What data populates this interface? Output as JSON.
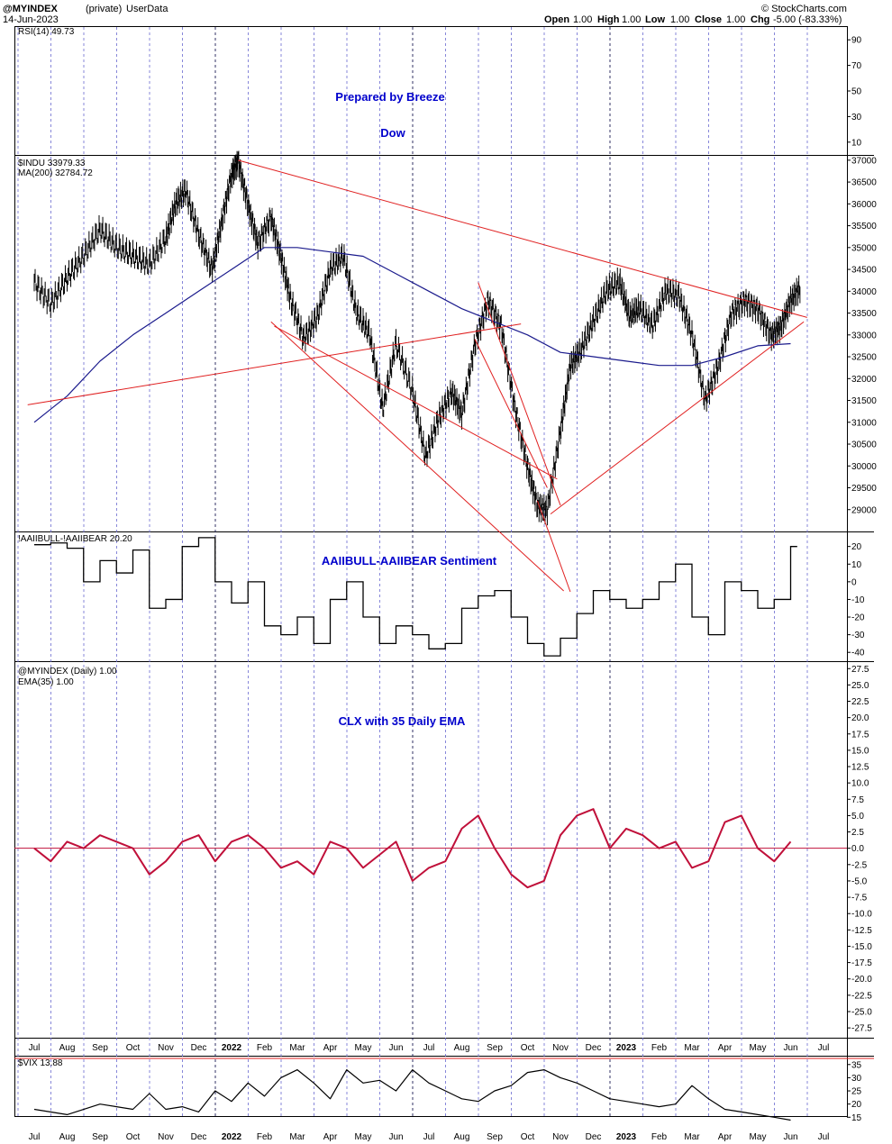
{
  "header": {
    "symbol": "@MYINDEX",
    "qualifier": "(private)",
    "source": "UserData",
    "date": "14-Jun-2023",
    "open_label": "Open",
    "open": "1.00",
    "high_label": "High",
    "high": "1.00",
    "low_label": "Low",
    "low": "1.00",
    "close_label": "Close",
    "close": "1.00",
    "chg_label": "Chg",
    "chg": "-5.00 (-83.33%)",
    "credit": "© StockCharts.com"
  },
  "colors": {
    "red": "#e02020",
    "navy": "#1a1a8c",
    "crimson": "#c0103a",
    "title_blue": "#0000cc"
  },
  "months": [
    "Jul",
    "Aug",
    "Sep",
    "Oct",
    "Nov",
    "Dec",
    "2022",
    "Feb",
    "Mar",
    "Apr",
    "May",
    "Jun",
    "Jul",
    "Aug",
    "Sep",
    "Oct",
    "Nov",
    "Dec",
    "2023",
    "Feb",
    "Mar",
    "Apr",
    "May",
    "Jun",
    "Jul"
  ],
  "chart_data": [
    {
      "type": "line",
      "panel": "rsi",
      "legend": "RSI(14) 49.73",
      "annotations": [
        "Prepared by Breeze",
        "Dow"
      ],
      "y_ticks": [
        90,
        70,
        50,
        30,
        10
      ],
      "ylim": [
        0,
        100
      ],
      "series": []
    },
    {
      "type": "line",
      "panel": "price",
      "legend": [
        "$INDU 33979.33",
        "MA(200) 32784.72"
      ],
      "y_ticks": [
        37000,
        36500,
        36000,
        35500,
        35000,
        34500,
        34000,
        33500,
        33000,
        32500,
        32000,
        31500,
        31000,
        30500,
        30000,
        29500,
        29000
      ],
      "ylim": [
        28500,
        37100
      ],
      "series": [
        {
          "name": "$INDU",
          "points": [
            [
              0,
              34200
            ],
            [
              0.5,
              33700
            ],
            [
              1,
              34300
            ],
            [
              1.5,
              34800
            ],
            [
              2,
              35400
            ],
            [
              2.5,
              35000
            ],
            [
              3,
              34800
            ],
            [
              3.5,
              34600
            ],
            [
              4,
              35200
            ],
            [
              4.3,
              36000
            ],
            [
              4.6,
              36300
            ],
            [
              5,
              35300
            ],
            [
              5.4,
              34500
            ],
            [
              5.7,
              35600
            ],
            [
              6,
              36700
            ],
            [
              6.2,
              37000
            ],
            [
              6.5,
              36000
            ],
            [
              6.8,
              35100
            ],
            [
              7.2,
              35700
            ],
            [
              7.5,
              34800
            ],
            [
              7.8,
              33800
            ],
            [
              8.2,
              32900
            ],
            [
              8.6,
              33400
            ],
            [
              9,
              34500
            ],
            [
              9.4,
              34800
            ],
            [
              9.8,
              33500
            ],
            [
              10.2,
              33000
            ],
            [
              10.6,
              31300
            ],
            [
              11,
              32800
            ],
            [
              11.5,
              31700
            ],
            [
              11.9,
              30200
            ],
            [
              12.3,
              31100
            ],
            [
              12.7,
              31700
            ],
            [
              13,
              31200
            ],
            [
              13.4,
              32800
            ],
            [
              13.8,
              33800
            ],
            [
              14.2,
              33200
            ],
            [
              14.6,
              31400
            ],
            [
              15,
              30000
            ],
            [
              15.3,
              29100
            ],
            [
              15.6,
              29000
            ],
            [
              16,
              30800
            ],
            [
              16.3,
              32300
            ],
            [
              16.6,
              32600
            ],
            [
              17,
              33300
            ],
            [
              17.4,
              34000
            ],
            [
              17.8,
              34200
            ],
            [
              18.1,
              33400
            ],
            [
              18.4,
              33600
            ],
            [
              18.8,
              33200
            ],
            [
              19.2,
              34000
            ],
            [
              19.6,
              33900
            ],
            [
              20,
              33000
            ],
            [
              20.4,
              31500
            ],
            [
              20.8,
              32300
            ],
            [
              21.2,
              33500
            ],
            [
              21.6,
              33800
            ],
            [
              22,
              33600
            ],
            [
              22.4,
              33000
            ],
            [
              22.7,
              33200
            ],
            [
              23,
              33800
            ],
            [
              23.3,
              34100
            ]
          ]
        },
        {
          "name": "MA(200)",
          "points": [
            [
              0,
              31000
            ],
            [
              1,
              31600
            ],
            [
              2,
              32400
            ],
            [
              3,
              33000
            ],
            [
              4,
              33500
            ],
            [
              5,
              34000
            ],
            [
              6,
              34500
            ],
            [
              7,
              35000
            ],
            [
              8,
              35000
            ],
            [
              9,
              34900
            ],
            [
              10,
              34800
            ],
            [
              11,
              34400
            ],
            [
              12,
              34000
            ],
            [
              13,
              33600
            ],
            [
              14,
              33300
            ],
            [
              15,
              33000
            ],
            [
              16,
              32600
            ],
            [
              17,
              32500
            ],
            [
              18,
              32400
            ],
            [
              19,
              32300
            ],
            [
              20,
              32300
            ],
            [
              21,
              32500
            ],
            [
              22,
              32750
            ],
            [
              23,
              32800
            ]
          ]
        }
      ]
    },
    {
      "type": "line",
      "panel": "sentiment",
      "legend": "!AAIIBULL-!AAIIBEAR 20.20",
      "title": "AAIIBULL-AAIIBEAR Sentiment",
      "y_ticks": [
        20,
        10,
        0,
        -10,
        -20,
        -30,
        -40
      ],
      "ylim": [
        -45,
        28
      ],
      "series": [
        {
          "name": "!AAIIBULL-!AAIIBEAR",
          "points": [
            [
              0,
              21
            ],
            [
              0.5,
              22
            ],
            [
              1,
              19
            ],
            [
              1.5,
              0
            ],
            [
              2,
              12
            ],
            [
              2.5,
              5
            ],
            [
              3,
              18
            ],
            [
              3.5,
              -15
            ],
            [
              4,
              -10
            ],
            [
              4.5,
              20
            ],
            [
              5,
              25
            ],
            [
              5.5,
              0
            ],
            [
              6,
              -12
            ],
            [
              6.5,
              0
            ],
            [
              7,
              -25
            ],
            [
              7.5,
              -30
            ],
            [
              8,
              -20
            ],
            [
              8.5,
              -35
            ],
            [
              9,
              -10
            ],
            [
              9.5,
              0
            ],
            [
              10,
              -20
            ],
            [
              10.5,
              -35
            ],
            [
              11,
              -25
            ],
            [
              11.5,
              -30
            ],
            [
              12,
              -38
            ],
            [
              12.5,
              -35
            ],
            [
              13,
              -15
            ],
            [
              13.5,
              -8
            ],
            [
              14,
              -5
            ],
            [
              14.5,
              -20
            ],
            [
              15,
              -35
            ],
            [
              15.5,
              -42
            ],
            [
              16,
              -32
            ],
            [
              16.5,
              -18
            ],
            [
              17,
              -5
            ],
            [
              17.5,
              -10
            ],
            [
              18,
              -15
            ],
            [
              18.5,
              -10
            ],
            [
              19,
              0
            ],
            [
              19.5,
              10
            ],
            [
              20,
              -20
            ],
            [
              20.5,
              -30
            ],
            [
              21,
              0
            ],
            [
              21.5,
              -5
            ],
            [
              22,
              -15
            ],
            [
              22.5,
              -10
            ],
            [
              23,
              20
            ],
            [
              23.2,
              20
            ]
          ]
        }
      ]
    },
    {
      "type": "line",
      "panel": "clx",
      "legend": [
        "@MYINDEX (Daily) 1.00",
        "EMA(35) 1.00"
      ],
      "title": "CLX with 35 Daily EMA",
      "y_ticks": [
        27.5,
        25,
        22.5,
        20,
        17.5,
        15,
        12.5,
        10,
        7.5,
        5,
        2.5,
        0,
        -2.5,
        -5,
        -7.5,
        -10,
        -12.5,
        -15,
        -17.5,
        -20,
        -22.5,
        -25,
        -27.5
      ],
      "ylim": [
        -29,
        28.5
      ],
      "series": [
        {
          "name": "EMA(35)",
          "points": [
            [
              0,
              0
            ],
            [
              0.5,
              -2
            ],
            [
              1,
              1
            ],
            [
              1.5,
              0
            ],
            [
              2,
              2
            ],
            [
              2.5,
              1
            ],
            [
              3,
              0
            ],
            [
              3.5,
              -4
            ],
            [
              4,
              -2
            ],
            [
              4.5,
              1
            ],
            [
              5,
              2
            ],
            [
              5.5,
              -2
            ],
            [
              6,
              1
            ],
            [
              6.5,
              2
            ],
            [
              7,
              0
            ],
            [
              7.5,
              -3
            ],
            [
              8,
              -2
            ],
            [
              8.5,
              -4
            ],
            [
              9,
              1
            ],
            [
              9.5,
              0
            ],
            [
              10,
              -3
            ],
            [
              10.5,
              -1
            ],
            [
              11,
              1
            ],
            [
              11.5,
              -5
            ],
            [
              12,
              -3
            ],
            [
              12.5,
              -2
            ],
            [
              13,
              3
            ],
            [
              13.5,
              5
            ],
            [
              14,
              0
            ],
            [
              14.5,
              -4
            ],
            [
              15,
              -6
            ],
            [
              15.5,
              -5
            ],
            [
              16,
              2
            ],
            [
              16.5,
              5
            ],
            [
              17,
              6
            ],
            [
              17.5,
              0
            ],
            [
              18,
              3
            ],
            [
              18.5,
              2
            ],
            [
              19,
              0
            ],
            [
              19.5,
              1
            ],
            [
              20,
              -3
            ],
            [
              20.5,
              -2
            ],
            [
              21,
              4
            ],
            [
              21.5,
              5
            ],
            [
              22,
              0
            ],
            [
              22.5,
              -2
            ],
            [
              23,
              1
            ]
          ]
        }
      ]
    },
    {
      "type": "line",
      "panel": "vix",
      "legend": "$VIX 13.88",
      "y_ticks": [
        35,
        30,
        25,
        20,
        15
      ],
      "ylim": [
        11,
        38
      ],
      "series": [
        {
          "name": "$VIX",
          "points": [
            [
              0,
              18
            ],
            [
              1,
              16
            ],
            [
              2,
              20
            ],
            [
              3,
              18
            ],
            [
              3.5,
              24
            ],
            [
              4,
              18
            ],
            [
              4.5,
              19
            ],
            [
              5,
              17
            ],
            [
              5.5,
              25
            ],
            [
              6,
              21
            ],
            [
              6.5,
              28
            ],
            [
              7,
              23
            ],
            [
              7.5,
              30
            ],
            [
              8,
              33
            ],
            [
              8.5,
              28
            ],
            [
              9,
              22
            ],
            [
              9.5,
              33
            ],
            [
              10,
              28
            ],
            [
              10.5,
              29
            ],
            [
              11,
              25
            ],
            [
              11.5,
              33
            ],
            [
              12,
              28
            ],
            [
              12.5,
              25
            ],
            [
              13,
              22
            ],
            [
              13.5,
              21
            ],
            [
              14,
              25
            ],
            [
              14.5,
              27
            ],
            [
              15,
              32
            ],
            [
              15.5,
              33
            ],
            [
              16,
              30
            ],
            [
              16.5,
              28
            ],
            [
              17,
              25
            ],
            [
              17.5,
              22
            ],
            [
              18,
              21
            ],
            [
              18.5,
              20
            ],
            [
              19,
              19
            ],
            [
              19.5,
              20
            ],
            [
              20,
              27
            ],
            [
              20.5,
              22
            ],
            [
              21,
              18
            ],
            [
              21.5,
              17
            ],
            [
              22,
              16
            ],
            [
              22.5,
              15
            ],
            [
              23,
              13.9
            ]
          ]
        }
      ]
    }
  ],
  "trendlines": [
    {
      "from": [
        6.2,
        37000
      ],
      "to": [
        23.5,
        33400
      ]
    },
    {
      "from": [
        -0.2,
        31400
      ],
      "to": [
        14.8,
        33250
      ]
    },
    {
      "from": [
        7.3,
        33200
      ],
      "to": [
        15.9,
        29700
      ]
    },
    {
      "from": [
        13.5,
        34200
      ],
      "to": [
        16,
        29100
      ]
    },
    {
      "from": [
        13.4,
        32900
      ],
      "to": [
        15.6,
        29500
      ]
    },
    {
      "from": [
        15.7,
        28900
      ],
      "to": [
        23.4,
        33300
      ]
    }
  ]
}
